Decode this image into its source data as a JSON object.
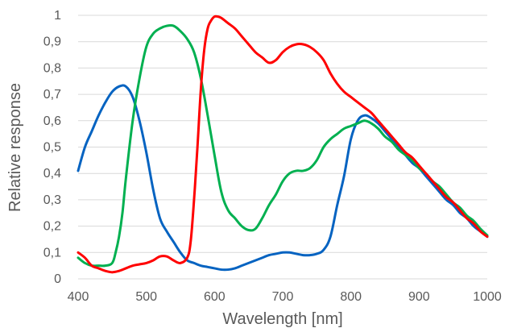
{
  "chart_data": {
    "type": "line",
    "title": "",
    "xlabel": "Wavelength [nm]",
    "ylabel": "Relative response",
    "xlim": [
      400,
      1000
    ],
    "ylim": [
      0,
      1
    ],
    "x_ticks": [
      400,
      500,
      600,
      700,
      800,
      900,
      1000
    ],
    "x_tick_labels": [
      "400",
      "500",
      "600",
      "700",
      "800",
      "900",
      "1000"
    ],
    "y_ticks": [
      0,
      0.1,
      0.2,
      0.3,
      0.4,
      0.5,
      0.6,
      0.7,
      0.8,
      0.9,
      1
    ],
    "y_tick_labels": [
      "0",
      "0,1",
      "0,2",
      "0,3",
      "0,4",
      "0,5",
      "0,6",
      "0,7",
      "0,8",
      "0,9",
      "1"
    ],
    "grid": "horizontal",
    "legend": "none",
    "series": [
      {
        "color": "#0563c1",
        "x": [
          400,
          410,
          420,
          430,
          440,
          450,
          460,
          470,
          480,
          490,
          500,
          510,
          520,
          530,
          540,
          550,
          560,
          570,
          580,
          590,
          600,
          610,
          620,
          630,
          640,
          650,
          660,
          670,
          680,
          690,
          700,
          710,
          720,
          730,
          740,
          750,
          760,
          770,
          780,
          790,
          800,
          810,
          820,
          830,
          840,
          850,
          860,
          870,
          880,
          890,
          900,
          910,
          920,
          930,
          940,
          950,
          960,
          970,
          980,
          990,
          1000
        ],
        "y": [
          0.41,
          0.5,
          0.56,
          0.62,
          0.67,
          0.71,
          0.73,
          0.73,
          0.69,
          0.6,
          0.48,
          0.34,
          0.23,
          0.18,
          0.14,
          0.1,
          0.07,
          0.06,
          0.05,
          0.045,
          0.04,
          0.035,
          0.035,
          0.04,
          0.05,
          0.06,
          0.07,
          0.08,
          0.09,
          0.095,
          0.1,
          0.1,
          0.095,
          0.09,
          0.09,
          0.095,
          0.11,
          0.16,
          0.28,
          0.39,
          0.53,
          0.6,
          0.62,
          0.61,
          0.59,
          0.56,
          0.53,
          0.5,
          0.47,
          0.44,
          0.42,
          0.39,
          0.36,
          0.33,
          0.3,
          0.28,
          0.25,
          0.23,
          0.2,
          0.18,
          0.16
        ]
      },
      {
        "color": "#00b050",
        "x": [
          400,
          410,
          420,
          430,
          440,
          450,
          455,
          460,
          465,
          470,
          480,
          490,
          500,
          510,
          520,
          530,
          540,
          550,
          560,
          570,
          580,
          590,
          600,
          610,
          620,
          630,
          640,
          650,
          660,
          670,
          680,
          690,
          700,
          710,
          720,
          730,
          740,
          750,
          760,
          770,
          780,
          790,
          800,
          810,
          820,
          830,
          840,
          850,
          860,
          870,
          880,
          890,
          900,
          910,
          920,
          930,
          940,
          950,
          960,
          970,
          980,
          990,
          1000
        ],
        "y": [
          0.08,
          0.06,
          0.05,
          0.05,
          0.05,
          0.06,
          0.1,
          0.16,
          0.25,
          0.38,
          0.6,
          0.76,
          0.88,
          0.93,
          0.95,
          0.96,
          0.96,
          0.94,
          0.91,
          0.86,
          0.76,
          0.62,
          0.47,
          0.33,
          0.26,
          0.23,
          0.2,
          0.185,
          0.19,
          0.23,
          0.28,
          0.32,
          0.37,
          0.4,
          0.41,
          0.41,
          0.42,
          0.45,
          0.5,
          0.53,
          0.55,
          0.57,
          0.58,
          0.59,
          0.6,
          0.59,
          0.57,
          0.54,
          0.52,
          0.49,
          0.47,
          0.45,
          0.42,
          0.4,
          0.37,
          0.35,
          0.32,
          0.29,
          0.27,
          0.24,
          0.22,
          0.19,
          0.165
        ]
      },
      {
        "color": "#ff0000",
        "x": [
          400,
          410,
          420,
          430,
          440,
          450,
          460,
          470,
          480,
          490,
          500,
          510,
          520,
          530,
          540,
          550,
          560,
          565,
          570,
          575,
          580,
          585,
          590,
          595,
          600,
          605,
          610,
          620,
          630,
          640,
          650,
          660,
          670,
          680,
          690,
          700,
          710,
          720,
          730,
          740,
          750,
          760,
          770,
          780,
          790,
          800,
          810,
          820,
          830,
          840,
          850,
          860,
          870,
          880,
          890,
          900,
          910,
          920,
          930,
          940,
          950,
          960,
          970,
          980,
          990,
          1000
        ],
        "y": [
          0.1,
          0.08,
          0.05,
          0.04,
          0.03,
          0.025,
          0.03,
          0.04,
          0.05,
          0.055,
          0.06,
          0.07,
          0.085,
          0.085,
          0.07,
          0.06,
          0.08,
          0.14,
          0.3,
          0.5,
          0.72,
          0.87,
          0.95,
          0.98,
          0.995,
          0.995,
          0.99,
          0.97,
          0.95,
          0.92,
          0.89,
          0.86,
          0.84,
          0.82,
          0.83,
          0.86,
          0.88,
          0.89,
          0.89,
          0.88,
          0.86,
          0.83,
          0.78,
          0.74,
          0.71,
          0.69,
          0.67,
          0.65,
          0.63,
          0.6,
          0.57,
          0.54,
          0.51,
          0.48,
          0.46,
          0.43,
          0.4,
          0.37,
          0.34,
          0.31,
          0.29,
          0.26,
          0.23,
          0.21,
          0.18,
          0.16
        ]
      }
    ]
  }
}
